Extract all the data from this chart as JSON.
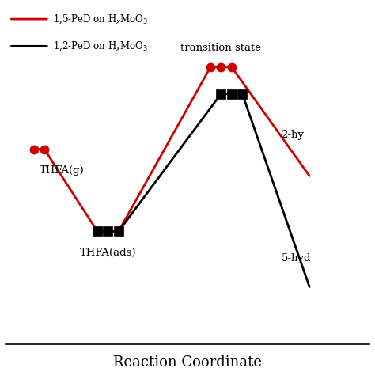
{
  "title": "Reaction Coordinate",
  "red_x": [
    0.0,
    0.3,
    1.8,
    2.1,
    2.4,
    5.0,
    5.3,
    5.6,
    7.8
  ],
  "red_y": [
    3.5,
    3.5,
    -0.5,
    -0.5,
    -0.5,
    7.5,
    7.5,
    7.5,
    2.2
  ],
  "black_x": [
    1.8,
    2.1,
    2.4,
    5.3,
    5.6,
    5.9,
    7.8
  ],
  "black_y": [
    -0.5,
    -0.5,
    -0.5,
    6.2,
    6.2,
    6.2,
    -3.2
  ],
  "red_marker": "o",
  "black_marker": "s",
  "red_color": "#cc0000",
  "black_color": "#000000",
  "bg_color": "#ffffff",
  "ylim": [
    -6.0,
    10.5
  ],
  "xlim": [
    -0.8,
    9.5
  ],
  "xlabel": "Reaction Coordinate",
  "xlabel_fontsize": 13,
  "legend_line1": "1,5-PeD on H",
  "legend_line1b": "MoO",
  "legend_line2": "1,2-PeD on H",
  "legend_line2b": "MoO",
  "ann_thfa_g_x": 0.15,
  "ann_thfa_g_y": 2.7,
  "ann_thfa_g": "THFA(g)",
  "ann_thfa_ads_x": 2.1,
  "ann_thfa_ads_y": -1.3,
  "ann_thfa_ads": "THFA(ads)",
  "ann_ts_x": 5.3,
  "ann_ts_y": 8.2,
  "ann_ts": "transition state",
  "ann_2hy_x": 7.0,
  "ann_2hy_y": 4.2,
  "ann_2hy": "2-hy",
  "ann_5hy_x": 7.0,
  "ann_5hy_y": -1.8,
  "ann_5hy": "5-hyd",
  "lw": 2.0,
  "marker_size": 8
}
